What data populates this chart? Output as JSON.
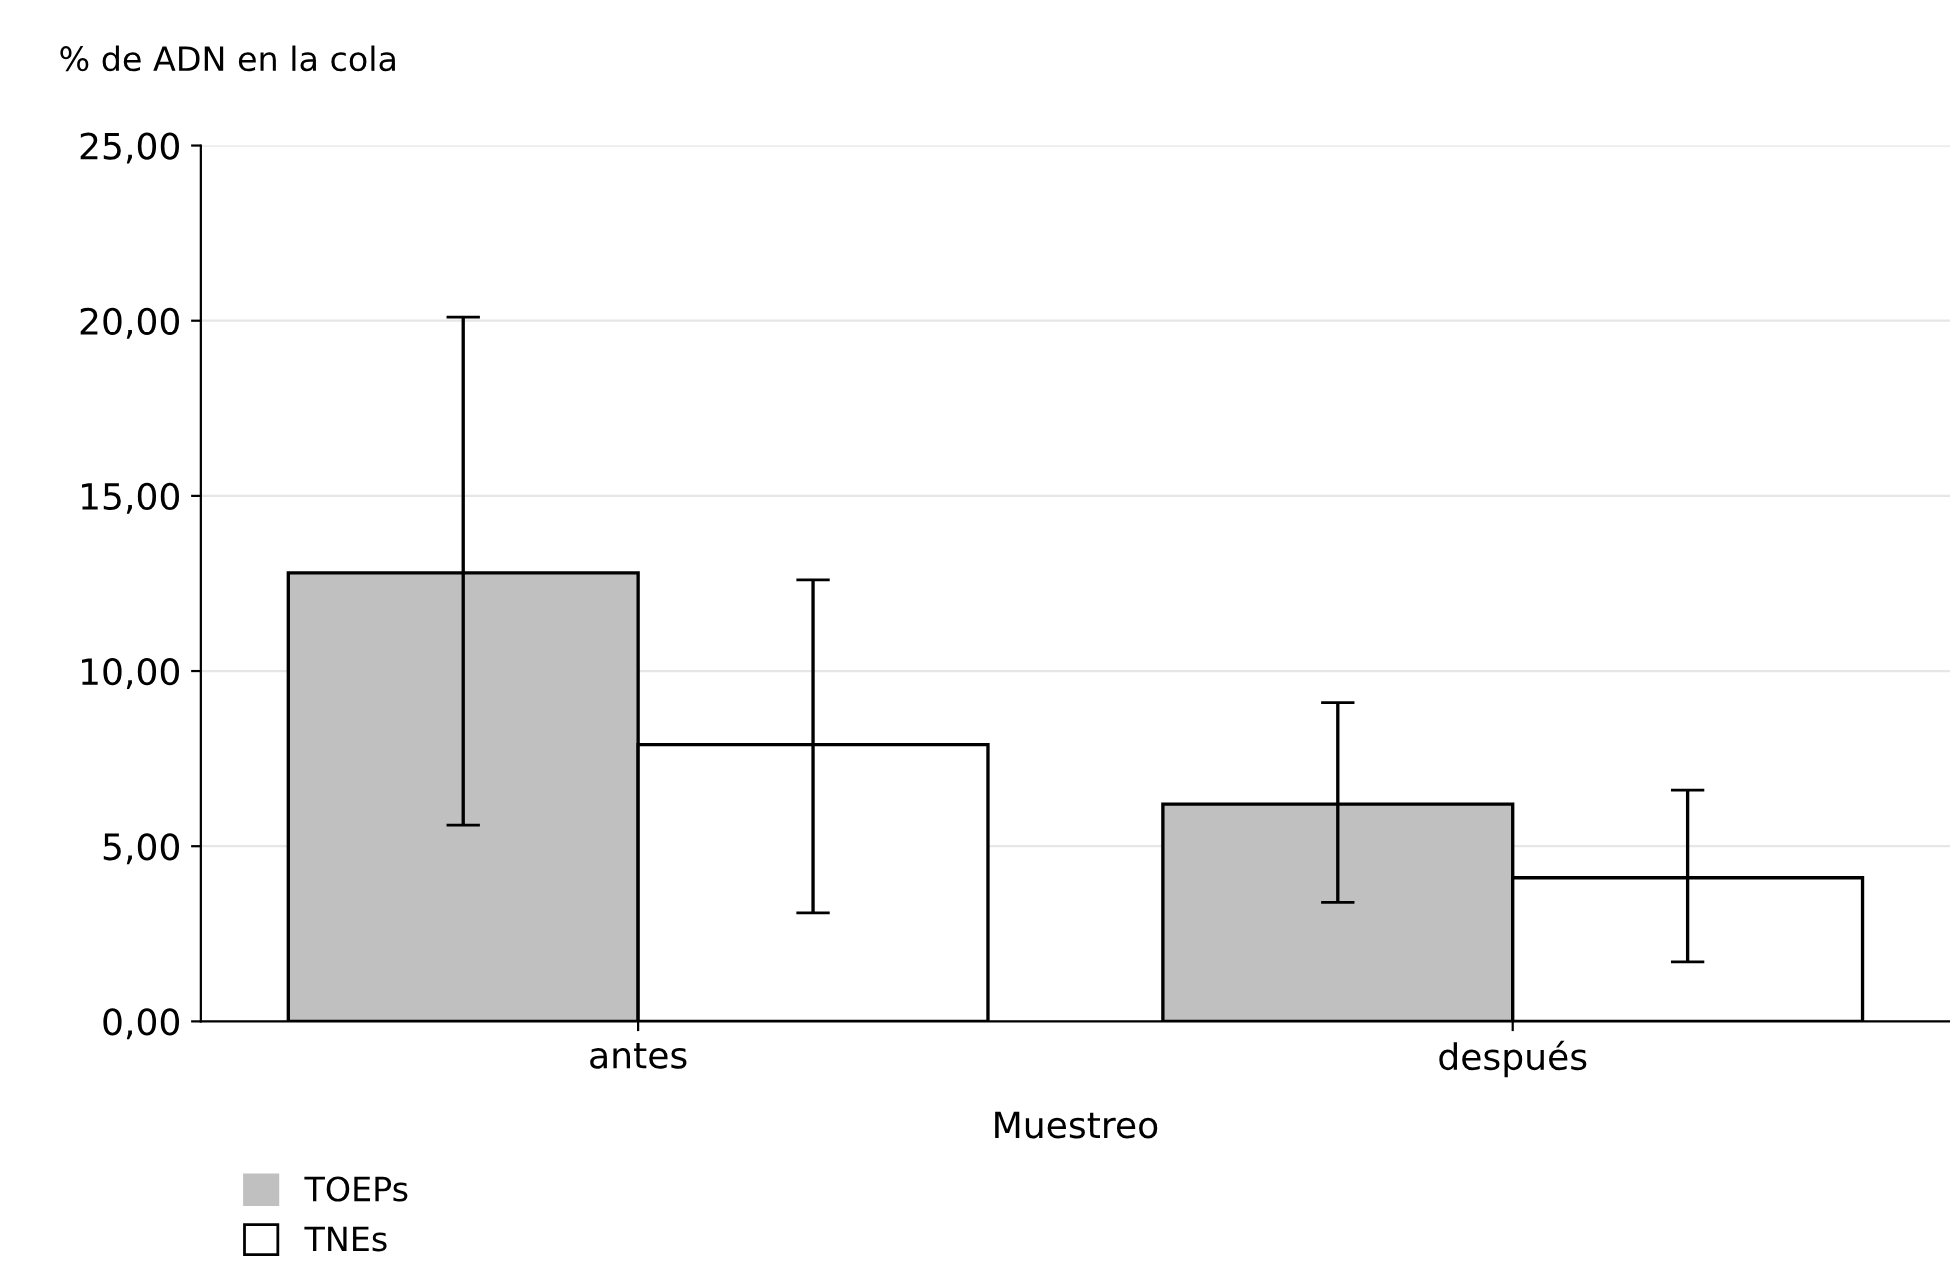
{
  "chart_data": {
    "type": "bar",
    "ylabel": "% de ADN en la cola",
    "xlabel": "Muestreo",
    "categories": [
      "antes",
      "después"
    ],
    "series": [
      {
        "name": "TOEPs",
        "color": "#c0c0c0",
        "values": [
          12.8,
          6.2
        ],
        "errors": [
          [
            5.6,
            20.1
          ],
          [
            3.4,
            9.1
          ]
        ]
      },
      {
        "name": "TNEs",
        "color": "#ffffff",
        "values": [
          7.9,
          4.1
        ],
        "errors": [
          [
            3.1,
            12.6
          ],
          [
            1.7,
            6.6
          ]
        ]
      }
    ],
    "ylim": [
      0,
      25
    ],
    "yticks": [
      {
        "value": 0,
        "label": "0,00"
      },
      {
        "value": 5,
        "label": "5,00"
      },
      {
        "value": 10,
        "label": "10,00"
      },
      {
        "value": 15,
        "label": "15,00"
      },
      {
        "value": 20,
        "label": "20,00"
      },
      {
        "value": 25,
        "label": "25,00"
      }
    ],
    "grid": "y",
    "legend": "bottom left"
  }
}
